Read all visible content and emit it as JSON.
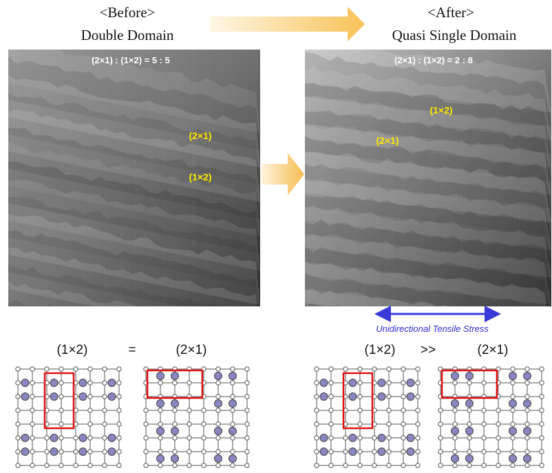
{
  "before": {
    "label": "<Before>",
    "title": "Double Domain",
    "ratio": "(2×1) : (1×2) = 5 : 5",
    "annotations": [
      "(2×1)",
      "(1×2)"
    ]
  },
  "after": {
    "label": "<After>",
    "title": "Quasi Single Domain",
    "ratio": "(2×1) : (1×2) = 2 : 8",
    "annotations": [
      "(1×2)",
      "(2×1)"
    ]
  },
  "stress_label": "Unidirectional Tensile Stress",
  "models": {
    "left": {
      "first": "(1×2)",
      "relation": "=",
      "second": "(2×1)"
    },
    "right": {
      "first": "(1×2)",
      "relation": ">>",
      "second": "(2×1)"
    }
  }
}
